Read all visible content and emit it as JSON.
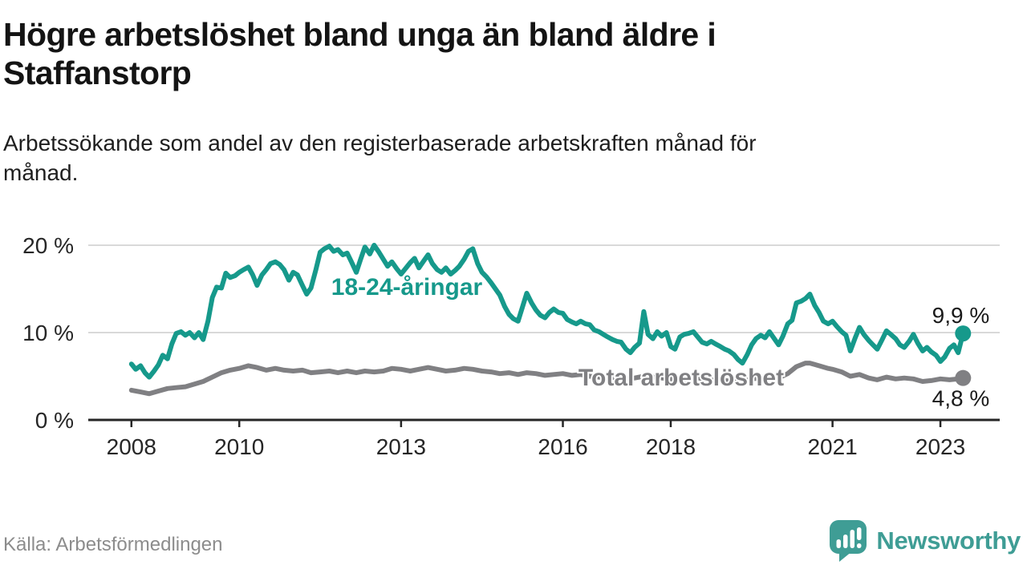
{
  "header": {
    "title_lines": [
      "Högre arbetslöshet bland unga än bland äldre i",
      "Staffanstorp"
    ],
    "subtitle_lines": [
      "Arbetssökande som andel av den registerbaserade arbetskraften månad för",
      "månad."
    ]
  },
  "chart_data": {
    "type": "line",
    "unit": "%",
    "xlim": [
      2007.2,
      2024.1
    ],
    "ylim": [
      0,
      21
    ],
    "grid": "horizontal-only",
    "legend_position": "inline-labels-on-lines",
    "x_ticks": {
      "values": [
        2008,
        2010,
        2013,
        2016,
        2018,
        2021,
        2023
      ],
      "labels": [
        "2008",
        "2010",
        "2013",
        "2016",
        "2018",
        "2021",
        "2023"
      ]
    },
    "y_ticks": {
      "values": [
        0,
        10,
        20
      ],
      "labels": [
        "0 %",
        "10 %",
        "20 %"
      ],
      "grid_values": [
        10,
        20
      ]
    },
    "series": [
      {
        "name": "18-24-åringar",
        "color": "#16998b",
        "end_label": "9,9 %",
        "last_value": 9.9,
        "points": [
          [
            2008.0,
            6.4
          ],
          [
            2008.08,
            5.8
          ],
          [
            2008.17,
            6.2
          ],
          [
            2008.25,
            5.4
          ],
          [
            2008.33,
            4.9
          ],
          [
            2008.42,
            5.6
          ],
          [
            2008.5,
            6.3
          ],
          [
            2008.58,
            7.4
          ],
          [
            2008.67,
            7.0
          ],
          [
            2008.75,
            8.7
          ],
          [
            2008.83,
            9.9
          ],
          [
            2008.92,
            10.1
          ],
          [
            2009.0,
            9.7
          ],
          [
            2009.08,
            10.0
          ],
          [
            2009.17,
            9.4
          ],
          [
            2009.25,
            10.0
          ],
          [
            2009.33,
            9.2
          ],
          [
            2009.42,
            11.3
          ],
          [
            2009.5,
            14.0
          ],
          [
            2009.58,
            15.2
          ],
          [
            2009.67,
            15.1
          ],
          [
            2009.75,
            16.8
          ],
          [
            2009.83,
            16.3
          ],
          [
            2009.92,
            16.5
          ],
          [
            2010.0,
            16.9
          ],
          [
            2010.08,
            17.2
          ],
          [
            2010.17,
            17.5
          ],
          [
            2010.25,
            16.6
          ],
          [
            2010.33,
            15.4
          ],
          [
            2010.42,
            16.6
          ],
          [
            2010.5,
            17.2
          ],
          [
            2010.58,
            17.9
          ],
          [
            2010.67,
            18.1
          ],
          [
            2010.75,
            17.8
          ],
          [
            2010.83,
            17.2
          ],
          [
            2010.92,
            16.0
          ],
          [
            2011.0,
            16.9
          ],
          [
            2011.08,
            16.6
          ],
          [
            2011.17,
            15.4
          ],
          [
            2011.25,
            14.4
          ],
          [
            2011.33,
            15.1
          ],
          [
            2011.42,
            17.2
          ],
          [
            2011.5,
            19.2
          ],
          [
            2011.58,
            19.6
          ],
          [
            2011.67,
            19.9
          ],
          [
            2011.75,
            19.3
          ],
          [
            2011.83,
            19.5
          ],
          [
            2011.92,
            18.9
          ],
          [
            2012.0,
            19.1
          ],
          [
            2012.08,
            18.1
          ],
          [
            2012.17,
            16.9
          ],
          [
            2012.25,
            18.4
          ],
          [
            2012.33,
            19.8
          ],
          [
            2012.42,
            19.0
          ],
          [
            2012.5,
            20.0
          ],
          [
            2012.58,
            19.3
          ],
          [
            2012.67,
            18.4
          ],
          [
            2012.75,
            17.6
          ],
          [
            2012.83,
            18.1
          ],
          [
            2012.92,
            17.3
          ],
          [
            2013.0,
            16.7
          ],
          [
            2013.08,
            17.3
          ],
          [
            2013.17,
            18.0
          ],
          [
            2013.25,
            18.5
          ],
          [
            2013.33,
            17.4
          ],
          [
            2013.42,
            18.2
          ],
          [
            2013.5,
            18.9
          ],
          [
            2013.58,
            17.9
          ],
          [
            2013.67,
            17.2
          ],
          [
            2013.75,
            16.9
          ],
          [
            2013.83,
            17.4
          ],
          [
            2013.92,
            16.7
          ],
          [
            2014.0,
            17.1
          ],
          [
            2014.08,
            17.6
          ],
          [
            2014.17,
            18.4
          ],
          [
            2014.25,
            19.3
          ],
          [
            2014.33,
            19.6
          ],
          [
            2014.42,
            17.9
          ],
          [
            2014.5,
            16.9
          ],
          [
            2014.58,
            16.4
          ],
          [
            2014.67,
            15.7
          ],
          [
            2014.75,
            15.0
          ],
          [
            2014.83,
            14.3
          ],
          [
            2014.92,
            13.0
          ],
          [
            2015.0,
            12.1
          ],
          [
            2015.08,
            11.6
          ],
          [
            2015.17,
            11.3
          ],
          [
            2015.25,
            12.9
          ],
          [
            2015.33,
            14.5
          ],
          [
            2015.42,
            13.4
          ],
          [
            2015.5,
            12.6
          ],
          [
            2015.58,
            12.0
          ],
          [
            2015.67,
            11.7
          ],
          [
            2015.75,
            12.3
          ],
          [
            2015.83,
            12.7
          ],
          [
            2015.92,
            12.3
          ],
          [
            2016.0,
            12.2
          ],
          [
            2016.08,
            11.5
          ],
          [
            2016.17,
            11.2
          ],
          [
            2016.25,
            11.0
          ],
          [
            2016.33,
            11.3
          ],
          [
            2016.42,
            11.0
          ],
          [
            2016.5,
            10.9
          ],
          [
            2016.58,
            10.3
          ],
          [
            2016.67,
            10.1
          ],
          [
            2016.75,
            9.8
          ],
          [
            2016.83,
            9.5
          ],
          [
            2016.92,
            9.2
          ],
          [
            2017.0,
            9.0
          ],
          [
            2017.08,
            8.9
          ],
          [
            2017.17,
            8.1
          ],
          [
            2017.25,
            7.7
          ],
          [
            2017.33,
            8.3
          ],
          [
            2017.42,
            8.8
          ],
          [
            2017.5,
            12.4
          ],
          [
            2017.58,
            9.8
          ],
          [
            2017.67,
            9.3
          ],
          [
            2017.75,
            10.1
          ],
          [
            2017.83,
            9.6
          ],
          [
            2017.92,
            10.0
          ],
          [
            2018.0,
            8.4
          ],
          [
            2018.08,
            8.1
          ],
          [
            2018.17,
            9.5
          ],
          [
            2018.25,
            9.8
          ],
          [
            2018.33,
            9.9
          ],
          [
            2018.42,
            10.1
          ],
          [
            2018.5,
            9.5
          ],
          [
            2018.58,
            8.9
          ],
          [
            2018.67,
            8.7
          ],
          [
            2018.75,
            9.0
          ],
          [
            2018.83,
            8.7
          ],
          [
            2018.92,
            8.4
          ],
          [
            2019.0,
            8.1
          ],
          [
            2019.08,
            7.9
          ],
          [
            2019.17,
            7.5
          ],
          [
            2019.25,
            6.9
          ],
          [
            2019.33,
            6.5
          ],
          [
            2019.42,
            7.5
          ],
          [
            2019.5,
            8.6
          ],
          [
            2019.58,
            9.3
          ],
          [
            2019.67,
            9.7
          ],
          [
            2019.75,
            9.4
          ],
          [
            2019.83,
            10.1
          ],
          [
            2019.92,
            9.3
          ],
          [
            2020.0,
            8.6
          ],
          [
            2020.08,
            9.6
          ],
          [
            2020.17,
            11.0
          ],
          [
            2020.25,
            11.4
          ],
          [
            2020.33,
            13.4
          ],
          [
            2020.42,
            13.6
          ],
          [
            2020.5,
            13.9
          ],
          [
            2020.58,
            14.4
          ],
          [
            2020.67,
            13.1
          ],
          [
            2020.75,
            12.3
          ],
          [
            2020.83,
            11.3
          ],
          [
            2020.92,
            11.0
          ],
          [
            2021.0,
            11.3
          ],
          [
            2021.08,
            10.7
          ],
          [
            2021.17,
            10.1
          ],
          [
            2021.25,
            9.7
          ],
          [
            2021.33,
            7.9
          ],
          [
            2021.42,
            9.4
          ],
          [
            2021.5,
            10.6
          ],
          [
            2021.58,
            9.8
          ],
          [
            2021.67,
            9.1
          ],
          [
            2021.75,
            8.6
          ],
          [
            2021.83,
            8.1
          ],
          [
            2021.92,
            9.2
          ],
          [
            2022.0,
            10.2
          ],
          [
            2022.08,
            9.8
          ],
          [
            2022.17,
            9.3
          ],
          [
            2022.25,
            8.6
          ],
          [
            2022.33,
            8.3
          ],
          [
            2022.42,
            9.0
          ],
          [
            2022.5,
            9.8
          ],
          [
            2022.58,
            8.8
          ],
          [
            2022.67,
            7.9
          ],
          [
            2022.75,
            8.3
          ],
          [
            2022.83,
            7.8
          ],
          [
            2022.92,
            7.4
          ],
          [
            2023.0,
            6.7
          ],
          [
            2023.08,
            7.2
          ],
          [
            2023.17,
            8.2
          ],
          [
            2023.25,
            8.6
          ],
          [
            2023.33,
            7.7
          ],
          [
            2023.42,
            9.9
          ]
        ]
      },
      {
        "name": "Total arbetslöshet",
        "color": "#808083",
        "end_label": "4,8 %",
        "last_value": 4.8,
        "points": [
          [
            2008.0,
            3.4
          ],
          [
            2008.17,
            3.2
          ],
          [
            2008.33,
            3.0
          ],
          [
            2008.5,
            3.3
          ],
          [
            2008.67,
            3.6
          ],
          [
            2008.83,
            3.7
          ],
          [
            2009.0,
            3.8
          ],
          [
            2009.17,
            4.1
          ],
          [
            2009.33,
            4.4
          ],
          [
            2009.5,
            4.9
          ],
          [
            2009.67,
            5.4
          ],
          [
            2009.83,
            5.7
          ],
          [
            2010.0,
            5.9
          ],
          [
            2010.17,
            6.2
          ],
          [
            2010.33,
            6.0
          ],
          [
            2010.5,
            5.7
          ],
          [
            2010.67,
            5.9
          ],
          [
            2010.83,
            5.7
          ],
          [
            2011.0,
            5.6
          ],
          [
            2011.17,
            5.7
          ],
          [
            2011.33,
            5.4
          ],
          [
            2011.5,
            5.5
          ],
          [
            2011.67,
            5.6
          ],
          [
            2011.83,
            5.4
          ],
          [
            2012.0,
            5.6
          ],
          [
            2012.17,
            5.4
          ],
          [
            2012.33,
            5.6
          ],
          [
            2012.5,
            5.5
          ],
          [
            2012.67,
            5.6
          ],
          [
            2012.83,
            5.9
          ],
          [
            2013.0,
            5.8
          ],
          [
            2013.17,
            5.6
          ],
          [
            2013.33,
            5.8
          ],
          [
            2013.5,
            6.0
          ],
          [
            2013.67,
            5.8
          ],
          [
            2013.83,
            5.6
          ],
          [
            2014.0,
            5.7
          ],
          [
            2014.17,
            5.9
          ],
          [
            2014.33,
            5.8
          ],
          [
            2014.5,
            5.6
          ],
          [
            2014.67,
            5.5
          ],
          [
            2014.83,
            5.3
          ],
          [
            2015.0,
            5.4
          ],
          [
            2015.17,
            5.2
          ],
          [
            2015.33,
            5.4
          ],
          [
            2015.5,
            5.3
          ],
          [
            2015.67,
            5.1
          ],
          [
            2015.83,
            5.2
          ],
          [
            2016.0,
            5.3
          ],
          [
            2016.17,
            5.1
          ],
          [
            2016.33,
            5.2
          ],
          [
            2016.5,
            5.0
          ],
          [
            2016.67,
            4.9
          ],
          [
            2016.83,
            4.8
          ],
          [
            2017.0,
            4.9
          ],
          [
            2017.17,
            4.7
          ],
          [
            2017.33,
            4.8
          ],
          [
            2017.5,
            5.0
          ],
          [
            2017.67,
            4.9
          ],
          [
            2017.83,
            4.8
          ],
          [
            2018.0,
            4.7
          ],
          [
            2018.17,
            4.6
          ],
          [
            2018.33,
            4.7
          ],
          [
            2018.5,
            4.8
          ],
          [
            2018.67,
            4.7
          ],
          [
            2018.83,
            4.6
          ],
          [
            2019.0,
            4.5
          ],
          [
            2019.17,
            4.4
          ],
          [
            2019.33,
            4.5
          ],
          [
            2019.5,
            4.7
          ],
          [
            2019.67,
            4.8
          ],
          [
            2019.83,
            4.7
          ],
          [
            2020.0,
            4.8
          ],
          [
            2020.17,
            5.3
          ],
          [
            2020.33,
            6.1
          ],
          [
            2020.5,
            6.5
          ],
          [
            2020.58,
            6.5
          ],
          [
            2020.75,
            6.2
          ],
          [
            2020.92,
            5.9
          ],
          [
            2021.0,
            5.8
          ],
          [
            2021.17,
            5.5
          ],
          [
            2021.33,
            5.0
          ],
          [
            2021.5,
            5.2
          ],
          [
            2021.67,
            4.8
          ],
          [
            2021.83,
            4.6
          ],
          [
            2022.0,
            4.9
          ],
          [
            2022.17,
            4.7
          ],
          [
            2022.33,
            4.8
          ],
          [
            2022.5,
            4.7
          ],
          [
            2022.67,
            4.4
          ],
          [
            2022.83,
            4.5
          ],
          [
            2023.0,
            4.7
          ],
          [
            2023.17,
            4.6
          ],
          [
            2023.33,
            4.7
          ],
          [
            2023.42,
            4.8
          ]
        ]
      }
    ]
  },
  "footer": {
    "source": "Källa: Arbetsförmedlingen"
  },
  "logo": {
    "text": "Newsworthy",
    "color": "#3f9d95",
    "icon": "newsworthy-speech-bubble-chart-icon"
  }
}
